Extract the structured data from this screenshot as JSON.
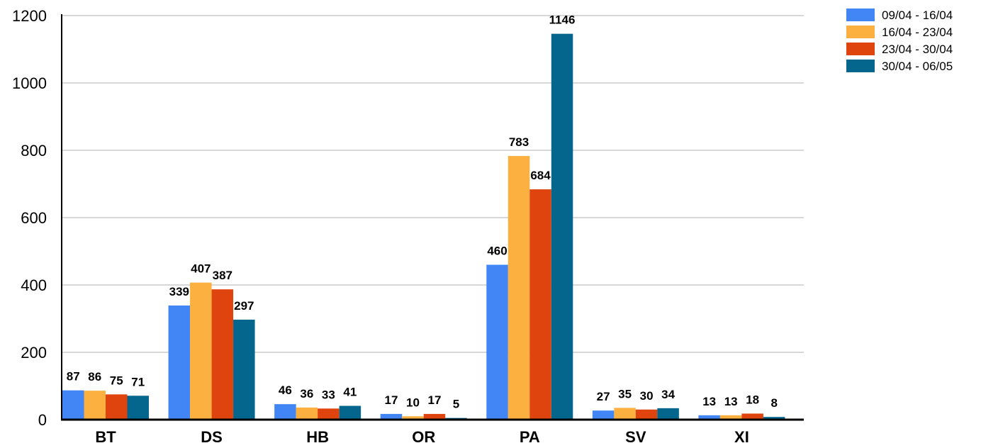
{
  "chart_data": {
    "type": "bar",
    "categories": [
      "BT",
      "DS",
      "HB",
      "OR",
      "PA",
      "SV",
      "XI"
    ],
    "series": [
      {
        "name": "09/04 - 16/04",
        "color": "#4285f4",
        "values": [
          87,
          339,
          46,
          17,
          460,
          27,
          13
        ]
      },
      {
        "name": "16/04 - 23/04",
        "color": "#fbb040",
        "values": [
          86,
          407,
          36,
          10,
          783,
          35,
          13
        ]
      },
      {
        "name": "23/04 - 30/04",
        "color": "#e0440e",
        "values": [
          75,
          387,
          33,
          17,
          684,
          30,
          18
        ]
      },
      {
        "name": "30/04 - 06/05",
        "color": "#05668d",
        "values": [
          71,
          297,
          41,
          5,
          1146,
          34,
          8
        ]
      }
    ],
    "title": "",
    "xlabel": "",
    "ylabel": "",
    "ylim": [
      0,
      1200
    ],
    "yticks": [
      0,
      200,
      400,
      600,
      800,
      1000,
      1200
    ],
    "grid": true,
    "legend": "top-right"
  }
}
